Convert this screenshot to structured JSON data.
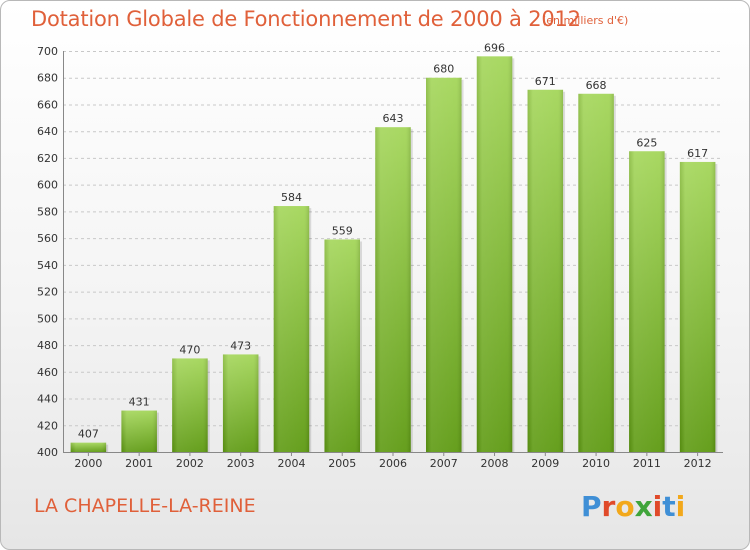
{
  "title": "Dotation Globale de Fonctionnement de 2000 à 2012",
  "unit_note": "(en milliers d'€)",
  "city": "LA CHAPELLE-LA-REINE",
  "logo": {
    "text": "Proxiti",
    "letters": [
      "P",
      "r",
      "o",
      "x",
      "i",
      "t",
      "i"
    ],
    "colors": [
      "#3f8fd6",
      "#e04a2a",
      "#f2a81b",
      "#3fa43a",
      "#e04a2a",
      "#3f8fd6",
      "#f2a81b"
    ]
  },
  "colors": {
    "bar_top": "#a4d65a",
    "bar_bottom": "#5e9a12",
    "title": "#e0603a",
    "grid": "#c8c8c8"
  },
  "chart_data": {
    "type": "bar",
    "title": "Dotation Globale de Fonctionnement de 2000 à 2012",
    "categories": [
      "2000",
      "2001",
      "2002",
      "2003",
      "2004",
      "2005",
      "2006",
      "2007",
      "2008",
      "2009",
      "2010",
      "2011",
      "2012"
    ],
    "values": [
      407,
      431,
      470,
      473,
      584,
      559,
      643,
      680,
      696,
      671,
      668,
      625,
      617
    ],
    "ylim": [
      400,
      700
    ],
    "yticks": [
      400,
      420,
      440,
      460,
      480,
      500,
      520,
      540,
      560,
      580,
      600,
      620,
      640,
      660,
      680,
      700
    ],
    "grid": true,
    "xlabel": "",
    "ylabel": ""
  }
}
